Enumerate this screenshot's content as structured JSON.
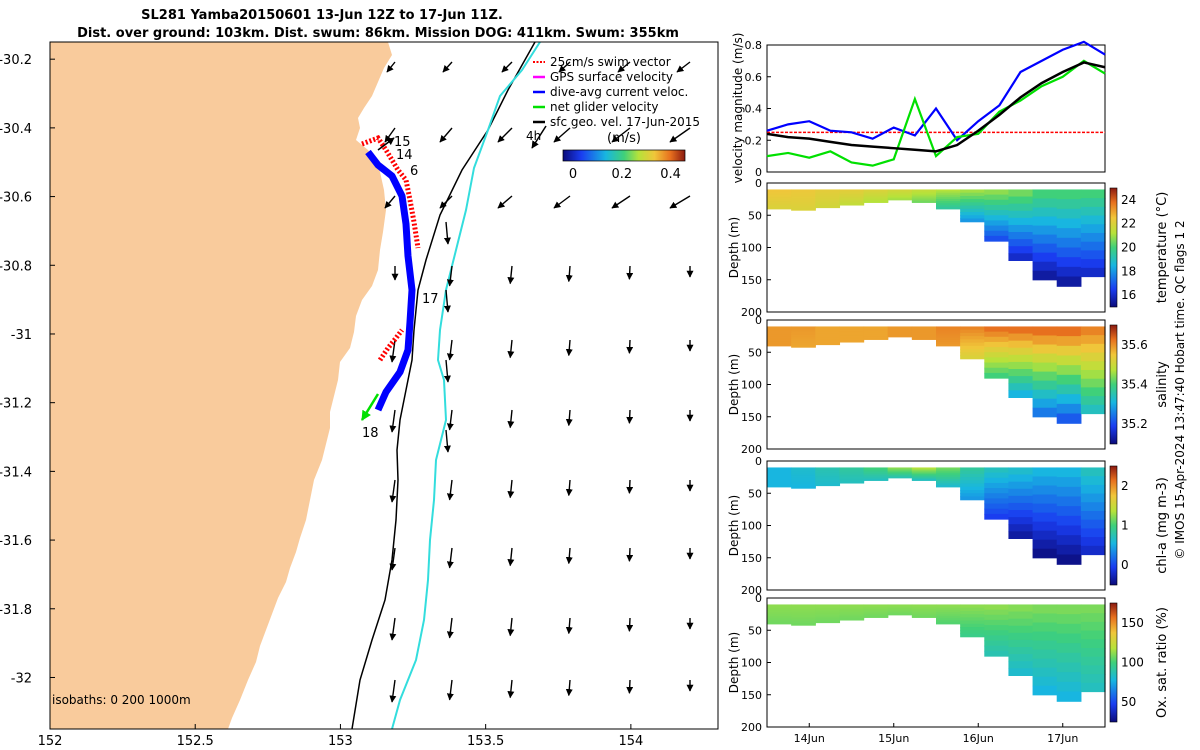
{
  "title": {
    "line1": "SL281 Yamba20150601 13-Jun 12Z to 17-Jun 11Z.",
    "line2": "Dist. over ground: 103km. Dist. swum: 86km. Mission DOG: 411km. Swum: 355km"
  },
  "credit": "© IMOS 15-Apr-2024 13:47:40 Hobart time. QC flags 1  2",
  "colors": {
    "land": "#F9CB9C",
    "sea": "#FFFFFF",
    "glider_track": "#0000FF",
    "swim_vector": "#FF0000",
    "net_velocity": "#00E000",
    "isobath_200": "#000000",
    "isobath_1000": "#33DDDD"
  },
  "map": {
    "x_ticks": [
      "152",
      "152.5",
      "153",
      "153.5",
      "154"
    ],
    "y_ticks": [
      "-30.2",
      "-30.4",
      "-30.6",
      "-30.8",
      "-31",
      "-31.2",
      "-31.4",
      "-31.6",
      "-31.8",
      "-32"
    ],
    "isobaths_label": "isobaths: 0   200  1000m",
    "legend": [
      {
        "label": "25cm/s swim vector",
        "color": "#FF0000"
      },
      {
        "label": "GPS surface velocity",
        "color": "#FF00FF"
      },
      {
        "label": "dive-avg current veloc.",
        "color": "#0000FF"
      },
      {
        "label": "net glider velocity",
        "color": "#00E000"
      },
      {
        "label": "sfc geo. vel. 17-Jun-2015",
        "color": "#000000"
      }
    ],
    "legend_scale_label": "4h",
    "colorbar": {
      "unit": "(m/s)",
      "ticks": [
        "0",
        "0.2",
        "0.4"
      ]
    },
    "day_labels": [
      {
        "text": "15",
        "lon": 153.22,
        "lat": -30.47
      },
      {
        "text": "14",
        "lon": 153.23,
        "lat": -30.51
      },
      {
        "text": "6",
        "lon": 153.25,
        "lat": -30.55
      },
      {
        "text": "17",
        "lon": 153.28,
        "lat": -30.92
      },
      {
        "text": "18",
        "lon": 153.1,
        "lat": -31.28
      }
    ]
  },
  "chart_data": [
    {
      "type": "line",
      "title": "",
      "ylabel": "velocity magnitude (m/s)",
      "ylim": [
        0,
        0.8
      ],
      "yticks": [
        "0",
        "0.2",
        "0.4",
        "0.6",
        "0.8"
      ],
      "x": [
        13.5,
        13.75,
        14.0,
        14.25,
        14.5,
        14.75,
        15.0,
        15.25,
        15.5,
        15.75,
        16.0,
        16.25,
        16.5,
        16.75,
        17.0,
        17.25,
        17.5
      ],
      "series": [
        {
          "color": "#FF0000",
          "values": [
            0.25,
            0.25,
            0.25,
            0.25,
            0.25,
            0.25,
            0.25,
            0.25,
            0.25,
            0.25,
            0.25,
            0.25,
            0.25,
            0.25,
            0.25,
            0.25,
            0.25
          ]
        },
        {
          "color": "#0000FF",
          "values": [
            0.26,
            0.3,
            0.32,
            0.26,
            0.25,
            0.21,
            0.28,
            0.23,
            0.4,
            0.2,
            0.32,
            0.42,
            0.63,
            0.7,
            0.77,
            0.82,
            0.74
          ]
        },
        {
          "color": "#00E000",
          "values": [
            0.1,
            0.12,
            0.09,
            0.13,
            0.06,
            0.04,
            0.08,
            0.46,
            0.1,
            0.22,
            0.24,
            0.38,
            0.45,
            0.54,
            0.6,
            0.7,
            0.62
          ]
        },
        {
          "color": "#000000",
          "values": [
            0.24,
            0.22,
            0.21,
            0.19,
            0.17,
            0.16,
            0.15,
            0.14,
            0.13,
            0.17,
            0.26,
            0.36,
            0.47,
            0.56,
            0.63,
            0.69,
            0.66
          ]
        }
      ]
    },
    {
      "type": "heatmap",
      "ylabel": "Depth (m)",
      "ylim": [
        200,
        0
      ],
      "yticks": [
        "0",
        "50",
        "100",
        "150",
        "200"
      ],
      "colorbar_label": "temperature (°C)",
      "colorbar_ticks": [
        "16",
        "18",
        "20",
        "22",
        "24"
      ],
      "bottom_depth": [
        40,
        42,
        38,
        34,
        30,
        26,
        30,
        40,
        60,
        90,
        120,
        150,
        160,
        145
      ],
      "surface": [
        0.75,
        0.74,
        0.72,
        0.72,
        0.7,
        0.68,
        0.65,
        0.62,
        0.6,
        0.58,
        0.55,
        0.5,
        0.5,
        0.5
      ],
      "deep": [
        0.7,
        0.7,
        0.68,
        0.65,
        0.62,
        0.6,
        0.55,
        0.45,
        0.3,
        0.18,
        0.1,
        0.05,
        0.05,
        0.1
      ]
    },
    {
      "type": "heatmap",
      "ylabel": "Depth (m)",
      "ylim": [
        200,
        0
      ],
      "yticks": [
        "0",
        "50",
        "100",
        "150",
        "200"
      ],
      "colorbar_label": "salinity",
      "colorbar_ticks": [
        "35.2",
        "35.4",
        "35.6"
      ],
      "bottom_depth": [
        40,
        42,
        38,
        34,
        30,
        26,
        30,
        40,
        60,
        90,
        120,
        150,
        160,
        145
      ],
      "surface": [
        0.82,
        0.82,
        0.8,
        0.8,
        0.8,
        0.82,
        0.82,
        0.85,
        0.85,
        0.88,
        0.88,
        0.88,
        0.88,
        0.85
      ],
      "deep": [
        0.82,
        0.8,
        0.8,
        0.8,
        0.8,
        0.82,
        0.82,
        0.82,
        0.7,
        0.5,
        0.35,
        0.25,
        0.2,
        0.4
      ]
    },
    {
      "type": "heatmap",
      "ylabel": "Depth (m)",
      "ylim": [
        200,
        0
      ],
      "yticks": [
        "0",
        "50",
        "100",
        "150",
        "200"
      ],
      "colorbar_label": "chl-a (mg m-3)",
      "colorbar_ticks": [
        "0",
        "1",
        "2"
      ],
      "bottom_depth": [
        40,
        42,
        38,
        34,
        30,
        26,
        30,
        40,
        60,
        90,
        120,
        150,
        160,
        145
      ],
      "surface": [
        0.35,
        0.38,
        0.42,
        0.45,
        0.5,
        0.58,
        0.62,
        0.55,
        0.45,
        0.4,
        0.38,
        0.35,
        0.35,
        0.4
      ],
      "deep": [
        0.35,
        0.35,
        0.38,
        0.4,
        0.4,
        0.42,
        0.4,
        0.38,
        0.3,
        0.15,
        0.05,
        0.02,
        0.02,
        0.1
      ]
    },
    {
      "type": "heatmap",
      "ylabel": "Depth (m)",
      "ylim": [
        200,
        0
      ],
      "yticks": [
        "0",
        "50",
        "100",
        "150",
        "200"
      ],
      "colorbar_label": "Ox. sat. ratio (%)",
      "colorbar_ticks": [
        "50",
        "100",
        "150"
      ],
      "bottom_depth": [
        40,
        42,
        38,
        34,
        30,
        26,
        30,
        40,
        60,
        90,
        120,
        150,
        160,
        145
      ],
      "surface": [
        0.58,
        0.58,
        0.58,
        0.58,
        0.58,
        0.58,
        0.58,
        0.58,
        0.58,
        0.58,
        0.57,
        0.56,
        0.56,
        0.56
      ],
      "deep": [
        0.55,
        0.55,
        0.55,
        0.55,
        0.55,
        0.55,
        0.55,
        0.52,
        0.48,
        0.42,
        0.38,
        0.35,
        0.35,
        0.4
      ]
    }
  ],
  "time_axis": {
    "ticks": [
      "14Jun",
      "15Jun",
      "16Jun",
      "17Jun"
    ],
    "values": [
      14,
      15,
      16,
      17
    ],
    "xlim": [
      13.5,
      17.5
    ]
  }
}
